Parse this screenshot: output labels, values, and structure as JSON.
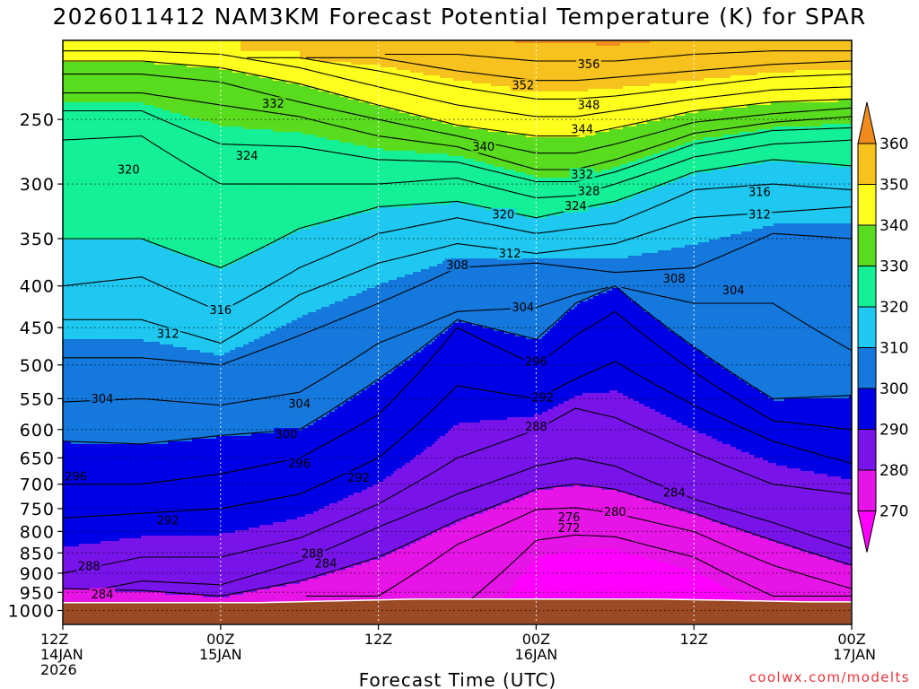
{
  "chart_data": {
    "type": "heatmap",
    "title": "2026011412 NAM3KM Forecast Potential Temperature (K) for SPAR",
    "xlabel": "Forecast Time (UTC)",
    "ylabel": "",
    "y_axis": {
      "scale": "pressure-log",
      "range_hpa": [
        1040,
        200
      ],
      "tick_labels": [
        "250",
        "300",
        "350",
        "400",
        "450",
        "500",
        "550",
        "600",
        "650",
        "700",
        "750",
        "800",
        "850",
        "900",
        "950",
        "1000"
      ],
      "tick_values": [
        250,
        300,
        350,
        400,
        450,
        500,
        550,
        600,
        650,
        700,
        750,
        800,
        850,
        900,
        950,
        1000
      ]
    },
    "x_axis": {
      "range_hours": [
        0,
        60
      ],
      "ticks": [
        {
          "hour": 0,
          "line1": "12Z",
          "line2": "14JAN",
          "line3": "2026"
        },
        {
          "hour": 12,
          "line1": "00Z",
          "line2": "15JAN",
          "line3": ""
        },
        {
          "hour": 24,
          "line1": "12Z",
          "line2": "",
          "line3": ""
        },
        {
          "hour": 36,
          "line1": "00Z",
          "line2": "16JAN",
          "line3": ""
        },
        {
          "hour": 48,
          "line1": "12Z",
          "line2": "",
          "line3": ""
        },
        {
          "hour": 60,
          "line1": "00Z",
          "line2": "17JAN",
          "line3": ""
        }
      ]
    },
    "colorbar": {
      "labels": [
        "360",
        "350",
        "340",
        "330",
        "320",
        "310",
        "300",
        "290",
        "280",
        "270"
      ],
      "bins": [
        {
          "min": 360,
          "color": "#f08c1e"
        },
        {
          "min": 350,
          "color": "#f8c21e"
        },
        {
          "min": 340,
          "color": "#ffff1e"
        },
        {
          "min": 330,
          "color": "#5adc1e"
        },
        {
          "min": 320,
          "color": "#14f096"
        },
        {
          "min": 310,
          "color": "#1ec8f0"
        },
        {
          "min": 300,
          "color": "#1478dc"
        },
        {
          "min": 290,
          "color": "#0000e6"
        },
        {
          "min": 280,
          "color": "#7814ea"
        },
        {
          "min": 270,
          "color": "#e614e6"
        },
        {
          "min": 0,
          "color": "#ff00ff"
        }
      ]
    },
    "ground_color": "#9a4a24",
    "contour_interval_k": 2,
    "level_profiles": {
      "hours": [
        0,
        6,
        12,
        18,
        24,
        30,
        36,
        39,
        42,
        48,
        54,
        60
      ],
      "levels": [
        {
          "theta": 272,
          "p": [
            null,
            null,
            null,
            null,
            null,
            1000,
            820,
            808,
            812,
            860,
            960,
            null
          ]
        },
        {
          "theta": 276,
          "p": [
            null,
            null,
            null,
            null,
            960,
            830,
            752,
            748,
            760,
            800,
            880,
            940
          ]
        },
        {
          "theta": 280,
          "p": [
            940,
            945,
            960,
            920,
            860,
            775,
            710,
            700,
            710,
            760,
            820,
            880
          ]
        },
        {
          "theta": 284,
          "p": [
            960,
            920,
            930,
            870,
            790,
            720,
            665,
            650,
            665,
            730,
            780,
            840
          ]
        },
        {
          "theta": 288,
          "p": [
            900,
            860,
            860,
            815,
            740,
            650,
            600,
            565,
            580,
            640,
            700,
            720
          ]
        },
        {
          "theta": 292,
          "p": [
            770,
            760,
            750,
            720,
            650,
            530,
            550,
            520,
            495,
            560,
            620,
            660
          ]
        },
        {
          "theta": 296,
          "p": [
            700,
            700,
            680,
            650,
            575,
            450,
            500,
            460,
            430,
            510,
            585,
            600
          ]
        },
        {
          "theta": 300,
          "p": [
            620,
            625,
            610,
            600,
            520,
            440,
            465,
            420,
            400,
            475,
            550,
            545
          ]
        },
        {
          "theta": 304,
          "p": [
            555,
            550,
            560,
            540,
            470,
            430,
            425,
            410,
            400,
            420,
            420,
            480
          ]
        },
        {
          "theta": 308,
          "p": [
            490,
            490,
            500,
            460,
            420,
            380,
            375,
            380,
            385,
            380,
            345,
            350
          ]
        },
        {
          "theta": 312,
          "p": [
            440,
            440,
            470,
            410,
            375,
            355,
            365,
            360,
            355,
            330,
            325,
            320
          ]
        },
        {
          "theta": 316,
          "p": [
            400,
            390,
            430,
            380,
            345,
            330,
            345,
            340,
            335,
            305,
            300,
            305
          ]
        },
        {
          "theta": 320,
          "p": [
            350,
            350,
            380,
            340,
            320,
            315,
            330,
            322,
            315,
            290,
            280,
            285
          ]
        },
        {
          "theta": 324,
          "p": [
            265,
            262,
            300,
            300,
            300,
            295,
            312,
            310,
            300,
            278,
            268,
            265
          ]
        },
        {
          "theta": 328,
          "p": [
            244,
            244,
            268,
            270,
            280,
            282,
            298,
            298,
            290,
            268,
            258,
            256
          ]
        },
        {
          "theta": 332,
          "p": [
            232,
            232,
            240,
            248,
            262,
            270,
            288,
            288,
            280,
            260,
            252,
            248
          ]
        },
        {
          "theta": 336,
          "p": [
            220,
            220,
            225,
            238,
            250,
            262,
            275,
            275,
            268,
            252,
            246,
            242
          ]
        },
        {
          "theta": 340,
          "p": [
            212,
            212,
            216,
            226,
            240,
            254,
            262,
            262,
            256,
            244,
            238,
            236
          ]
        },
        {
          "theta": 344,
          "p": [
            206,
            206,
            208,
            216,
            228,
            240,
            248,
            248,
            244,
            236,
            230,
            228
          ]
        },
        {
          "theta": 348,
          "p": [
            null,
            null,
            null,
            210,
            218,
            228,
            236,
            236,
            234,
            228,
            222,
            220
          ]
        },
        {
          "theta": 352,
          "p": [
            null,
            null,
            null,
            null,
            210,
            218,
            224,
            224,
            222,
            218,
            214,
            212
          ]
        },
        {
          "theta": 356,
          "p": [
            null,
            null,
            null,
            null,
            null,
            208,
            212,
            212,
            212,
            208,
            206,
            206
          ]
        }
      ]
    },
    "contour_labels": [
      {
        "text": "356",
        "hour": 40,
        "p": 214
      },
      {
        "text": "352",
        "hour": 35,
        "p": 227
      },
      {
        "text": "348",
        "hour": 40,
        "p": 240
      },
      {
        "text": "344",
        "hour": 39.5,
        "p": 257
      },
      {
        "text": "340",
        "hour": 32,
        "p": 270
      },
      {
        "text": "332",
        "hour": 16,
        "p": 239
      },
      {
        "text": "324",
        "hour": 14,
        "p": 277
      },
      {
        "text": "320",
        "hour": 5,
        "p": 288
      },
      {
        "text": "332",
        "hour": 39.5,
        "p": 292
      },
      {
        "text": "328",
        "hour": 40,
        "p": 306
      },
      {
        "text": "324",
        "hour": 39,
        "p": 319
      },
      {
        "text": "320",
        "hour": 33.5,
        "p": 327
      },
      {
        "text": "316",
        "hour": 53,
        "p": 307
      },
      {
        "text": "312",
        "hour": 53,
        "p": 327
      },
      {
        "text": "312",
        "hour": 34,
        "p": 365
      },
      {
        "text": "308",
        "hour": 30,
        "p": 377
      },
      {
        "text": "308",
        "hour": 46.5,
        "p": 392
      },
      {
        "text": "304",
        "hour": 35,
        "p": 425
      },
      {
        "text": "304",
        "hour": 51,
        "p": 405
      },
      {
        "text": "316",
        "hour": 12,
        "p": 428
      },
      {
        "text": "312",
        "hour": 8,
        "p": 458
      },
      {
        "text": "304",
        "hour": 3,
        "p": 550
      },
      {
        "text": "304",
        "hour": 18,
        "p": 558
      },
      {
        "text": "296",
        "hour": 36,
        "p": 495
      },
      {
        "text": "292",
        "hour": 36.5,
        "p": 548
      },
      {
        "text": "288",
        "hour": 36,
        "p": 595
      },
      {
        "text": "300",
        "hour": 17,
        "p": 608
      },
      {
        "text": "296",
        "hour": 18,
        "p": 660
      },
      {
        "text": "292",
        "hour": 22.5,
        "p": 687
      },
      {
        "text": "284",
        "hour": 46.5,
        "p": 717
      },
      {
        "text": "280",
        "hour": 42,
        "p": 757
      },
      {
        "text": "276",
        "hour": 38.5,
        "p": 768
      },
      {
        "text": "272",
        "hour": 38.5,
        "p": 792
      },
      {
        "text": "296",
        "hour": 1,
        "p": 685
      },
      {
        "text": "292",
        "hour": 8,
        "p": 775
      },
      {
        "text": "288",
        "hour": 19,
        "p": 851
      },
      {
        "text": "284",
        "hour": 20,
        "p": 876
      },
      {
        "text": "288",
        "hour": 2,
        "p": 882
      },
      {
        "text": "284",
        "hour": 3,
        "p": 955
      }
    ]
  },
  "footer": {
    "credit": "coolwx.com/modelts"
  }
}
